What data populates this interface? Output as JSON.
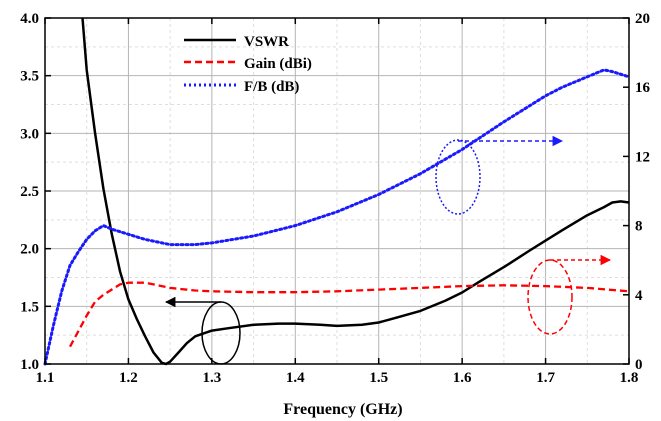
{
  "chart_data": {
    "type": "line",
    "xlabel": "Frequency (GHz)",
    "ylabel_left": "",
    "ylabel_right": "",
    "xlim": [
      1.1,
      1.8
    ],
    "xticks": [
      "1.1",
      "1.2",
      "1.3",
      "1.4",
      "1.5",
      "1.6",
      "1.7",
      "1.8"
    ],
    "ylim_left": [
      1.0,
      4.0
    ],
    "yticks_left": [
      "1.0",
      "1.5",
      "2.0",
      "2.5",
      "3.0",
      "3.5",
      "4.0"
    ],
    "ylim_right": [
      0,
      20
    ],
    "yticks_right": [
      "0",
      "4",
      "8",
      "12",
      "16",
      "20"
    ],
    "grid": true,
    "legend_position": "top-center",
    "series": [
      {
        "name": "VSWR",
        "axis": "left",
        "color": "#000000",
        "style": "solid",
        "x": [
          1.145,
          1.15,
          1.16,
          1.17,
          1.18,
          1.19,
          1.2,
          1.21,
          1.22,
          1.23,
          1.24,
          1.245,
          1.25,
          1.26,
          1.27,
          1.28,
          1.3,
          1.32,
          1.35,
          1.38,
          1.4,
          1.43,
          1.45,
          1.48,
          1.5,
          1.52,
          1.55,
          1.58,
          1.6,
          1.62,
          1.65,
          1.68,
          1.7,
          1.72,
          1.75,
          1.77,
          1.78,
          1.79,
          1.8
        ],
        "values": [
          4.0,
          3.55,
          3.0,
          2.52,
          2.13,
          1.8,
          1.56,
          1.39,
          1.24,
          1.1,
          1.01,
          1.0,
          1.02,
          1.1,
          1.18,
          1.24,
          1.29,
          1.31,
          1.34,
          1.35,
          1.35,
          1.34,
          1.33,
          1.34,
          1.36,
          1.4,
          1.46,
          1.55,
          1.62,
          1.71,
          1.84,
          1.98,
          2.07,
          2.16,
          2.29,
          2.36,
          2.4,
          2.41,
          2.4
        ]
      },
      {
        "name": "Gain (dBi)",
        "axis": "right",
        "color": "#ff0000",
        "style": "dashed",
        "x": [
          1.13,
          1.14,
          1.15,
          1.16,
          1.17,
          1.18,
          1.19,
          1.2,
          1.21,
          1.22,
          1.23,
          1.25,
          1.28,
          1.3,
          1.35,
          1.4,
          1.45,
          1.5,
          1.55,
          1.6,
          1.65,
          1.7,
          1.75,
          1.8
        ],
        "values": [
          1.0,
          1.9,
          2.8,
          3.6,
          4.0,
          4.3,
          4.6,
          4.7,
          4.7,
          4.7,
          4.6,
          4.4,
          4.25,
          4.2,
          4.15,
          4.15,
          4.2,
          4.3,
          4.4,
          4.5,
          4.55,
          4.5,
          4.4,
          4.2
        ]
      },
      {
        "name": "F/B (dB)",
        "axis": "right",
        "color": "#1a1aff",
        "style": "dotted",
        "x": [
          1.1,
          1.11,
          1.12,
          1.13,
          1.14,
          1.15,
          1.16,
          1.17,
          1.18,
          1.2,
          1.22,
          1.25,
          1.28,
          1.3,
          1.35,
          1.4,
          1.45,
          1.5,
          1.55,
          1.6,
          1.65,
          1.7,
          1.72,
          1.75,
          1.77,
          1.78,
          1.8
        ],
        "values": [
          0.0,
          2.2,
          4.2,
          5.7,
          6.5,
          7.2,
          7.7,
          8.0,
          7.8,
          7.5,
          7.2,
          6.9,
          6.9,
          7.0,
          7.4,
          8.0,
          8.8,
          9.8,
          11.0,
          12.4,
          14.0,
          15.5,
          16.0,
          16.6,
          17.0,
          16.9,
          16.6
        ]
      }
    ],
    "annotations": [
      {
        "kind": "ellipse-arrow",
        "target_axis": "left",
        "color": "#000000",
        "style": "solid"
      },
      {
        "kind": "ellipse-arrow",
        "target_axis": "right",
        "color": "#1a1aff",
        "style": "dotted"
      },
      {
        "kind": "ellipse-arrow",
        "target_axis": "right",
        "color": "#ff0000",
        "style": "dashed"
      }
    ]
  }
}
